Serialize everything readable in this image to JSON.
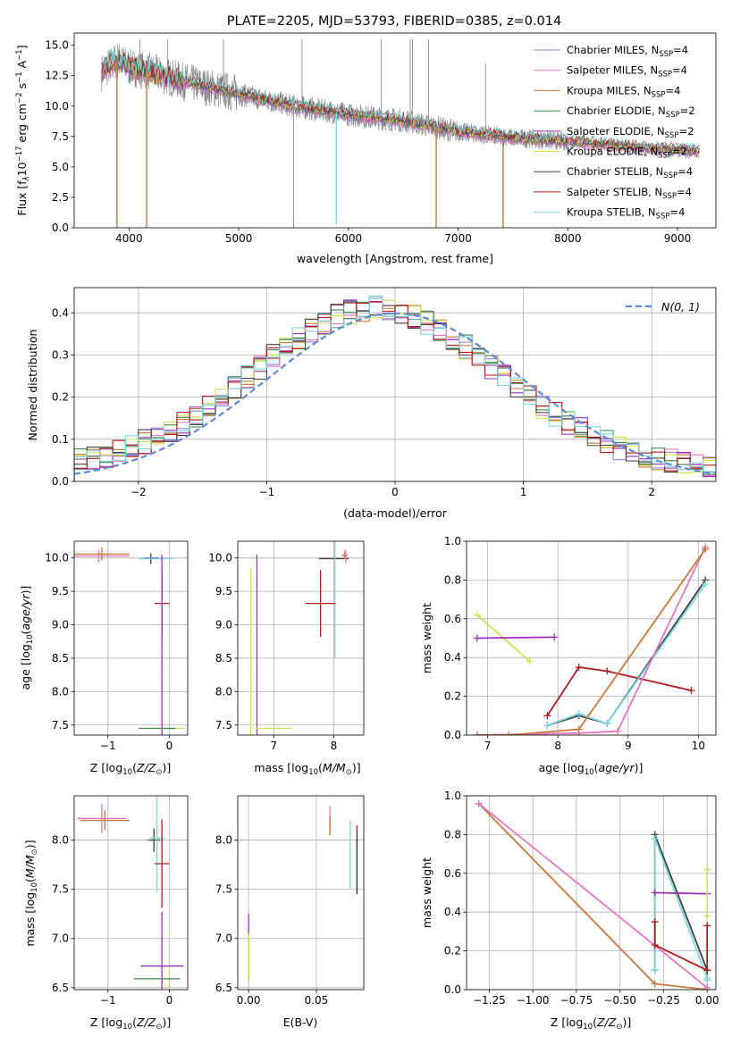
{
  "figure_title": "PLATE=2205, MJD=53793, FIBERID=0385, z=0.014",
  "colors": {
    "Chabrier MILES": "#7b8fd4",
    "Salpeter MILES": "#e377c2",
    "Kroupa MILES": "#c8783a",
    "Chabrier ELODIE": "#3f8a4a",
    "Salpeter ELODIE": "#9b30b8",
    "Kroupa ELODIE": "#cde34f",
    "Chabrier STELIB": "#404040",
    "Salpeter STELIB": "#b01c1c",
    "Kroupa STELIB": "#7dd7e0",
    "data": "#808080",
    "gaussian": "#5b8bd6"
  },
  "chart_data": [
    {
      "id": "spectrum",
      "type": "line",
      "title": "PLATE=2205, MJD=53793, FIBERID=0385, z=0.014",
      "xlabel": "wavelength [Angstrom, rest frame]",
      "ylabel": "Flux [f",
      "xlim": [
        3500,
        9350
      ],
      "ylim": [
        0,
        16
      ],
      "xticks": [
        4000,
        5000,
        6000,
        7000,
        8000,
        9000
      ],
      "yticks": [
        0.0,
        2.5,
        5.0,
        7.5,
        10.0,
        12.5,
        15.0
      ],
      "legend": [
        {
          "label": "Chabrier MILES, N",
          "sub": "SSP",
          "tail": "=4"
        },
        {
          "label": "Salpeter MILES, N",
          "sub": "SSP",
          "tail": "=4"
        },
        {
          "label": "Kroupa MILES, N",
          "sub": "SSP",
          "tail": "=4"
        },
        {
          "label": "Chabrier ELODIE, N",
          "sub": "SSP",
          "tail": "=2"
        },
        {
          "label": "Salpeter ELODIE, N",
          "sub": "SSP",
          "tail": "=2"
        },
        {
          "label": "Kroupa ELODIE, N",
          "sub": "SSP",
          "tail": "=2"
        },
        {
          "label": "Chabrier STELIB, N",
          "sub": "SSP",
          "tail": "=4"
        },
        {
          "label": "Salpeter STELIB, N",
          "sub": "SSP",
          "tail": "=4"
        },
        {
          "label": "Kroupa STELIB, N",
          "sub": "SSP",
          "tail": "=4"
        }
      ],
      "legend_position": "top-right",
      "continuum": [
        [
          3750,
          12.8
        ],
        [
          3900,
          13.8
        ],
        [
          4000,
          13.2
        ],
        [
          4200,
          12.8
        ],
        [
          4500,
          12.0
        ],
        [
          5000,
          11.0
        ],
        [
          5500,
          10.0
        ],
        [
          6000,
          9.3
        ],
        [
          6500,
          8.8
        ],
        [
          7000,
          7.9
        ],
        [
          7500,
          7.4
        ],
        [
          8000,
          7.1
        ],
        [
          8500,
          6.7
        ],
        [
          9000,
          6.4
        ],
        [
          9200,
          6.3
        ]
      ],
      "data_spikes": [
        [
          4100,
          15.5
        ],
        [
          4350,
          15.5
        ],
        [
          4861,
          15.5
        ],
        [
          5500,
          0.0
        ],
        [
          5577,
          15.5
        ],
        [
          6300,
          15.5
        ],
        [
          6563,
          15.5
        ],
        [
          6583,
          15.5
        ],
        [
          6730,
          15.5
        ],
        [
          7250,
          13.5
        ]
      ],
      "model_dips": [
        [
          3890,
          0.0
        ],
        [
          4160,
          0.0
        ],
        [
          5890,
          0.3
        ],
        [
          6800,
          0.0
        ],
        [
          7410,
          0.0
        ]
      ],
      "grid": false
    },
    {
      "id": "residuals",
      "type": "histogram",
      "xlabel": "(data-model)/error",
      "ylabel": "Normed distribution",
      "xlim": [
        -2.5,
        2.5
      ],
      "ylim": [
        0,
        0.46
      ],
      "xticks": [
        -2,
        -1,
        0,
        1,
        2
      ],
      "yticks": [
        0.0,
        0.1,
        0.2,
        0.3,
        0.4
      ],
      "bin_edges_start": -2.5,
      "bin_width": 0.1,
      "gaussian_label": "N(0, 1)",
      "legend_position": "top-right",
      "grid": true
    },
    {
      "id": "z-age",
      "type": "scatter",
      "xlabel": "Z [log",
      "ylabel": "age  [log",
      "xlim": [
        -1.55,
        0.3
      ],
      "ylim": [
        7.35,
        10.25
      ],
      "xticks": [
        -1,
        0
      ],
      "yticks": [
        7.5,
        8.0,
        8.5,
        9.0,
        9.5,
        10.0
      ],
      "grid": true,
      "points": [
        {
          "model": "Salpeter MILES",
          "x": -1.15,
          "y": 10.03,
          "xerr": 0.5,
          "yerr": 0.1
        },
        {
          "model": "Kroupa MILES",
          "x": -1.1,
          "y": 10.06,
          "xerr": 0.45,
          "yerr": 0.1
        },
        {
          "model": "Chabrier STELIB",
          "x": -0.3,
          "y": 9.99,
          "xerr": 0.0,
          "yerr": 0.08
        },
        {
          "model": "Kroupa STELIB",
          "x": -0.22,
          "y": 9.99,
          "xerr": 0.28,
          "yerr": 0.0
        },
        {
          "model": "Chabrier MILES",
          "x": -0.3,
          "y": 10.0,
          "xerr": 0.12,
          "yerr": 0.0
        },
        {
          "model": "Salpeter STELIB",
          "x": -0.12,
          "y": 9.32,
          "xerr": 0.12,
          "yerr": 0.5
        },
        {
          "model": "Salpeter ELODIE",
          "x": -0.12,
          "y": 7.45,
          "xerr": 0.0,
          "yerr": 2.6
        },
        {
          "model": "Kroupa ELODIE",
          "x": 0.0,
          "y": 7.45,
          "xerr": 0.25,
          "yerr": 0.0
        },
        {
          "model": "Chabrier ELODIE",
          "x": -0.2,
          "y": 7.45,
          "xerr": 0.3,
          "yerr": 0.0
        }
      ]
    },
    {
      "id": "mass-age",
      "type": "scatter",
      "xlabel": "mass [log",
      "ylabel": "",
      "xlim": [
        6.4,
        8.5
      ],
      "ylim": [
        7.35,
        10.25
      ],
      "xticks": [
        7,
        8
      ],
      "yticks": [
        7.5,
        8.0,
        8.5,
        9.0,
        9.5,
        10.0
      ],
      "grid": true,
      "points": [
        {
          "model": "Kroupa ELODIE",
          "x": 6.62,
          "y": 7.45,
          "xerr": 0.0,
          "yerr": 2.4
        },
        {
          "model": "Salpeter ELODIE",
          "x": 6.72,
          "y": 7.45,
          "xerr": 0.0,
          "yerr": 2.6
        },
        {
          "model": "Kroupa ELODIE",
          "x": 7.0,
          "y": 7.45,
          "xerr": 0.3,
          "yerr": 0.0
        },
        {
          "model": "Chabrier STELIB",
          "x": 8.0,
          "y": 9.99,
          "xerr": 0.25,
          "yerr": 0.0
        },
        {
          "model": "Kroupa STELIB",
          "x": 8.02,
          "y": 9.99,
          "xerr": 0.0,
          "yerr": 1.5
        },
        {
          "model": "Salpeter STELIB",
          "x": 7.78,
          "y": 9.32,
          "xerr": 0.25,
          "yerr": 0.5
        },
        {
          "model": "Kroupa MILES",
          "x": 8.18,
          "y": 10.04,
          "xerr": 0.05,
          "yerr": 0.06
        },
        {
          "model": "Salpeter MILES",
          "x": 8.2,
          "y": 10.03,
          "xerr": 0.03,
          "yerr": 0.1
        }
      ]
    },
    {
      "id": "age-weight",
      "type": "line",
      "xlabel": "age  [log",
      "ylabel": "mass weight",
      "xlim": [
        6.7,
        10.25
      ],
      "ylim": [
        0,
        1
      ],
      "xticks": [
        7,
        8,
        9,
        10
      ],
      "yticks": [
        0.0,
        0.2,
        0.4,
        0.6,
        0.8,
        1.0
      ],
      "grid": true,
      "series": [
        {
          "model": "Kroupa ELODIE",
          "x": [
            6.85,
            7.6
          ],
          "y": [
            0.62,
            0.38
          ]
        },
        {
          "model": "Salpeter ELODIE",
          "x": [
            6.85,
            7.95
          ],
          "y": [
            0.5,
            0.505
          ]
        },
        {
          "model": "Salpeter STELIB",
          "x": [
            7.85,
            8.3,
            8.7,
            9.9
          ],
          "y": [
            0.1,
            0.35,
            0.33,
            0.23
          ]
        },
        {
          "model": "Chabrier STELIB",
          "x": [
            7.85,
            8.3,
            8.7,
            10.1
          ],
          "y": [
            0.05,
            0.1,
            0.06,
            0.8
          ]
        },
        {
          "model": "Kroupa STELIB",
          "x": [
            7.85,
            8.3,
            8.7,
            10.1
          ],
          "y": [
            0.05,
            0.11,
            0.06,
            0.78
          ]
        },
        {
          "model": "Salpeter MILES",
          "x": [
            6.85,
            8.3,
            8.85,
            10.1
          ],
          "y": [
            0.0,
            0.01,
            0.02,
            0.97
          ]
        },
        {
          "model": "Kroupa MILES",
          "x": [
            6.85,
            7.3,
            8.3,
            10.1
          ],
          "y": [
            0.0,
            0.0,
            0.03,
            0.96
          ]
        }
      ]
    },
    {
      "id": "z-mass",
      "type": "scatter",
      "xlabel": "Z [log",
      "ylabel": "mass [log",
      "xlim": [
        -1.55,
        0.3
      ],
      "ylim": [
        6.48,
        8.45
      ],
      "xticks": [
        -1,
        0
      ],
      "yticks": [
        6.5,
        7.0,
        7.5,
        8.0
      ],
      "grid": true,
      "points": [
        {
          "model": "Salpeter MILES",
          "x": -1.1,
          "y": 8.22,
          "xerr": 0.4,
          "yerr": 0.15
        },
        {
          "model": "Kroupa MILES",
          "x": -1.05,
          "y": 8.2,
          "xerr": 0.4,
          "yerr": 0.1
        },
        {
          "model": "Chabrier STELIB",
          "x": -0.25,
          "y": 8.0,
          "xerr": 0.1,
          "yerr": 0.12
        },
        {
          "model": "Kroupa STELIB",
          "x": -0.2,
          "y": 8.02,
          "xerr": 0.12,
          "yerr": 0.55
        },
        {
          "model": "Salpeter STELIB",
          "x": -0.12,
          "y": 7.76,
          "xerr": 0.12,
          "yerr": 0.45
        },
        {
          "model": "Kroupa ELODIE",
          "x": 0.0,
          "y": 6.6,
          "xerr": 0.0,
          "yerr": 0.45
        },
        {
          "model": "Salpeter ELODIE",
          "x": -0.12,
          "y": 6.72,
          "xerr": 0.35,
          "yerr": 0.55
        },
        {
          "model": "Chabrier ELODIE",
          "x": -0.2,
          "y": 6.59,
          "xerr": 0.38,
          "yerr": 0.0
        }
      ]
    },
    {
      "id": "ebv-mass",
      "type": "scatter",
      "xlabel": "E(B-V)",
      "ylabel": "",
      "xlim": [
        -0.008,
        0.085
      ],
      "ylim": [
        6.48,
        8.45
      ],
      "xticks": [
        0.0,
        0.05
      ],
      "yticks": [
        6.5,
        7.0,
        7.5,
        8.0
      ],
      "grid": true,
      "points": [
        {
          "model": "Salpeter ELODIE",
          "x": 0.0,
          "y": 6.9,
          "xerr": 0.0,
          "yerr": 0.35
        },
        {
          "model": "Kroupa ELODIE",
          "x": 0.0,
          "y": 6.8,
          "xerr": 0.0,
          "yerr": 0.25
        },
        {
          "model": "Salpeter MILES",
          "x": 0.06,
          "y": 8.2,
          "xerr": 0.0,
          "yerr": 0.15
        },
        {
          "model": "Kroupa MILES",
          "x": 0.06,
          "y": 8.15,
          "xerr": 0.0,
          "yerr": 0.1
        },
        {
          "model": "Kroupa STELIB",
          "x": 0.075,
          "y": 7.85,
          "xerr": 0.0,
          "yerr": 0.35
        },
        {
          "model": "Salpeter STELIB",
          "x": 0.08,
          "y": 7.8,
          "xerr": 0.0,
          "yerr": 0.35
        },
        {
          "model": "Chabrier STELIB",
          "x": 0.08,
          "y": 7.75,
          "xerr": 0.0,
          "yerr": 0.3
        }
      ]
    },
    {
      "id": "z-weight",
      "type": "line",
      "xlabel": "Z [log",
      "ylabel": "mass weight",
      "xlim": [
        -1.38,
        0.05
      ],
      "ylim": [
        0,
        1
      ],
      "xticks": [
        -1.25,
        -1.0,
        -0.75,
        -0.5,
        -0.25,
        0.0
      ],
      "yticks": [
        0.0,
        0.2,
        0.4,
        0.6,
        0.8,
        1.0
      ],
      "grid": true,
      "series": [
        {
          "model": "Kroupa MILES",
          "x": [
            -1.31,
            -0.3,
            0.0
          ],
          "y": [
            0.96,
            0.03,
            0.0
          ]
        },
        {
          "model": "Salpeter MILES",
          "x": [
            -1.31,
            0.0
          ],
          "y": [
            0.96,
            0.01
          ]
        },
        {
          "model": "Chabrier STELIB",
          "x": [
            -0.3,
            -0.3,
            0.0,
            0.0
          ],
          "y": [
            0.1,
            0.8,
            0.1,
            0.05
          ]
        },
        {
          "model": "Kroupa STELIB",
          "x": [
            -0.3,
            -0.3,
            0.0,
            0.0
          ],
          "y": [
            0.1,
            0.78,
            0.06,
            0.05
          ]
        },
        {
          "model": "Salpeter STELIB",
          "x": [
            -0.3,
            -0.3,
            0.0,
            0.0
          ],
          "y": [
            0.35,
            0.23,
            0.1,
            0.33
          ]
        },
        {
          "model": "Salpeter ELODIE",
          "x": [
            -0.3,
            0.0
          ],
          "y": [
            0.5,
            0.495
          ]
        },
        {
          "model": "Kroupa ELODIE",
          "x": [
            0.0,
            0.0
          ],
          "y": [
            0.38,
            0.62
          ]
        }
      ]
    }
  ]
}
